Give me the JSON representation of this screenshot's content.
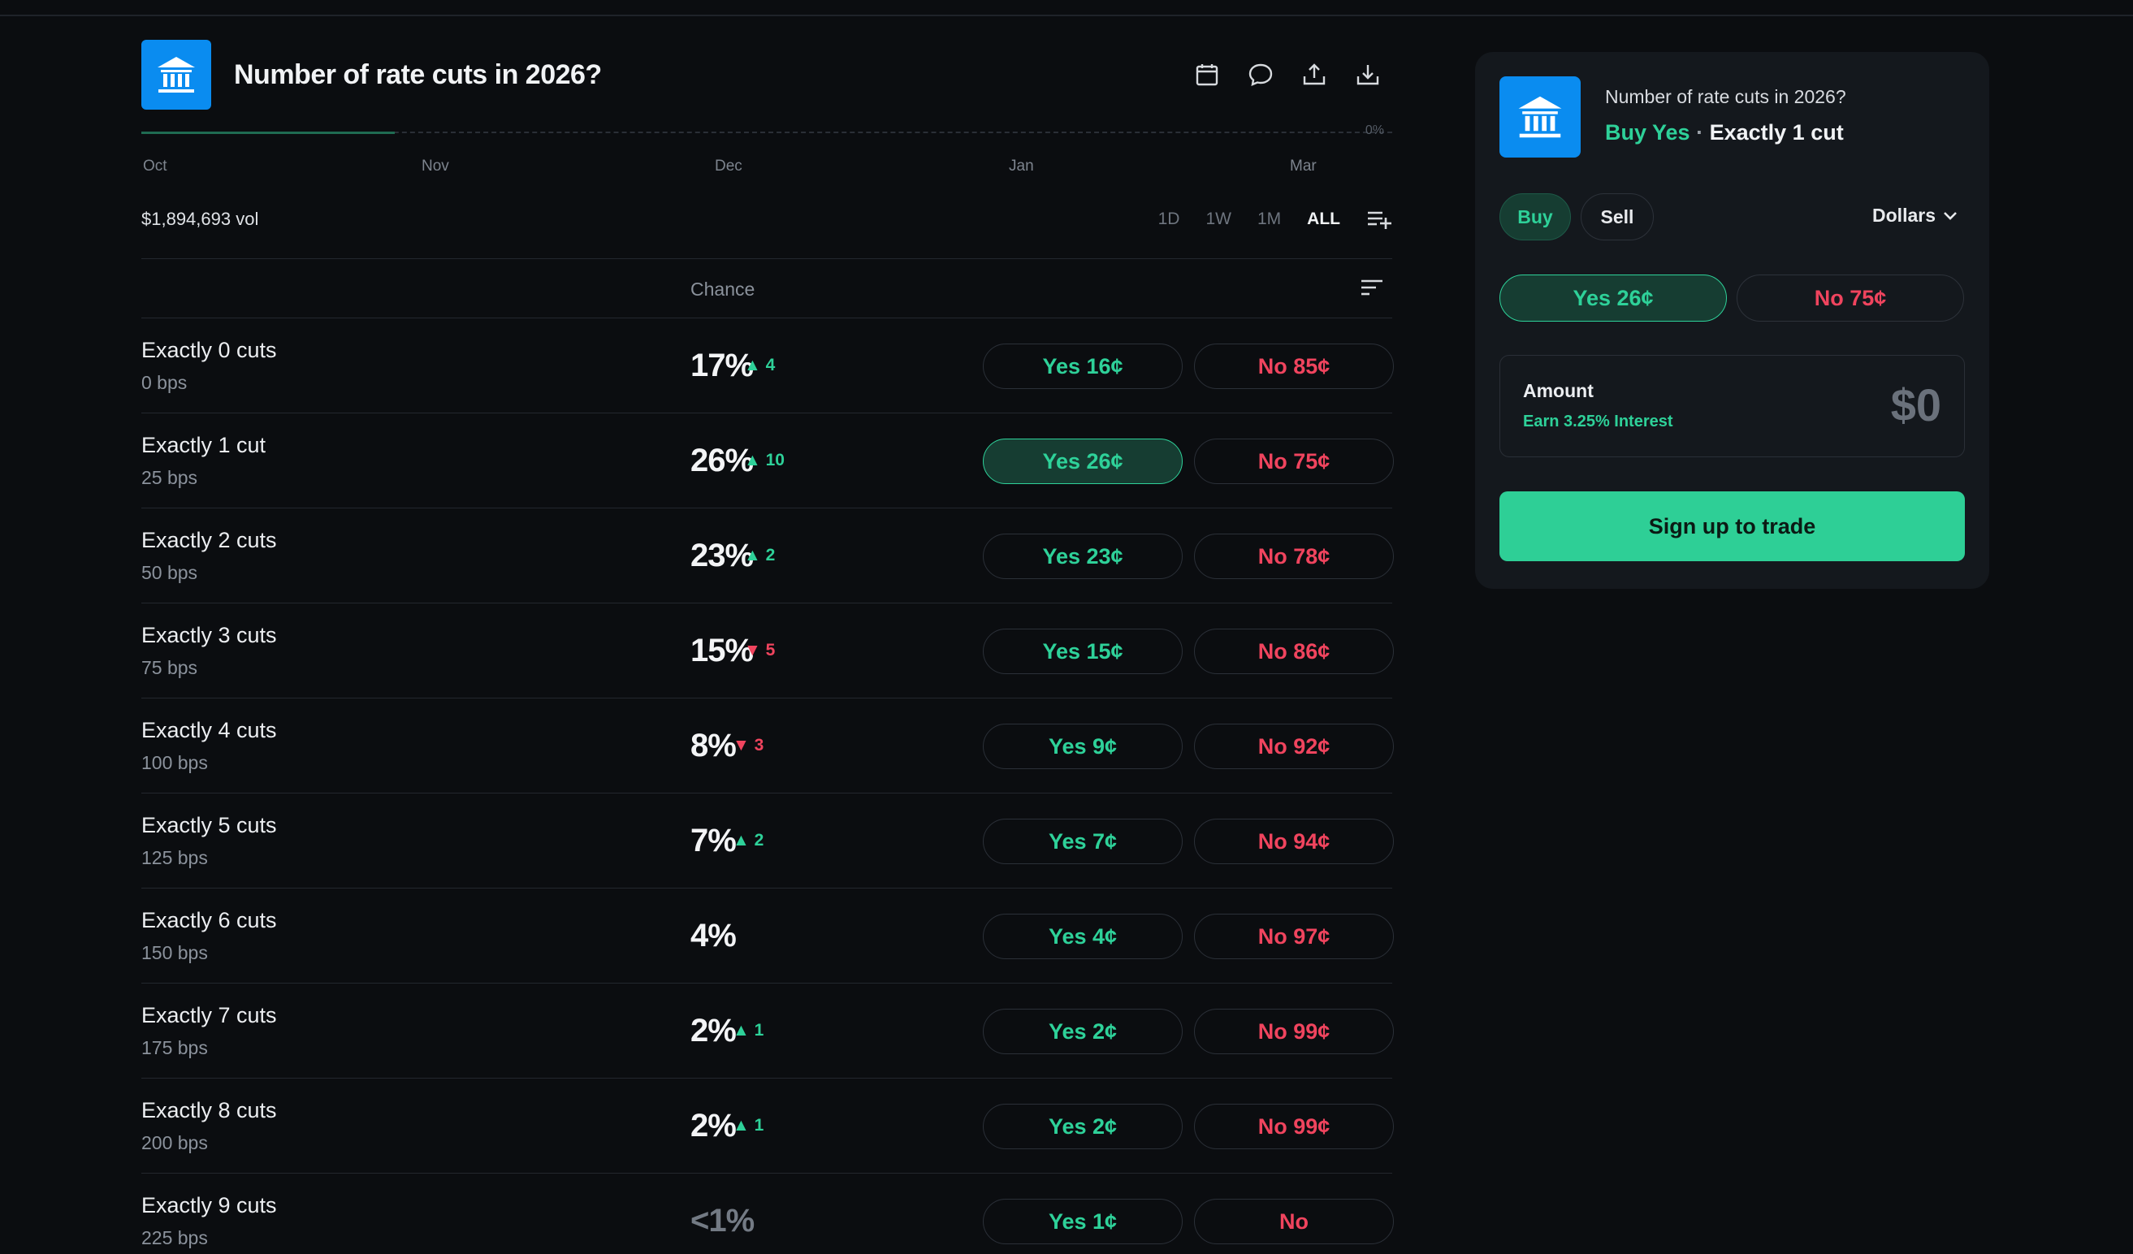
{
  "market": {
    "title": "Number of rate cuts in 2026?"
  },
  "chart": {
    "pct_label": "0%",
    "x_labels": [
      "Oct",
      "Nov",
      "Dec",
      "Jan",
      "Mar"
    ]
  },
  "volume": "$1,894,693 vol",
  "ranges": [
    "1D",
    "1W",
    "1M",
    "ALL"
  ],
  "active_range": "ALL",
  "table": {
    "chance_header": "Chance"
  },
  "rows": [
    {
      "name": "Exactly 0 cuts",
      "sub": "0 bps",
      "chance": "17%",
      "delta": "4",
      "dir": "up",
      "yes": "Yes 16¢",
      "no": "No 85¢"
    },
    {
      "name": "Exactly 1 cut",
      "sub": "25 bps",
      "chance": "26%",
      "delta": "10",
      "dir": "up",
      "yes": "Yes 26¢",
      "no": "No 75¢",
      "selected": true
    },
    {
      "name": "Exactly 2 cuts",
      "sub": "50 bps",
      "chance": "23%",
      "delta": "2",
      "dir": "up",
      "yes": "Yes 23¢",
      "no": "No 78¢"
    },
    {
      "name": "Exactly 3 cuts",
      "sub": "75 bps",
      "chance": "15%",
      "delta": "5",
      "dir": "down",
      "yes": "Yes 15¢",
      "no": "No 86¢"
    },
    {
      "name": "Exactly 4 cuts",
      "sub": "100 bps",
      "chance": "8%",
      "delta": "3",
      "dir": "down",
      "yes": "Yes 9¢",
      "no": "No 92¢"
    },
    {
      "name": "Exactly 5 cuts",
      "sub": "125 bps",
      "chance": "7%",
      "delta": "2",
      "dir": "up",
      "yes": "Yes 7¢",
      "no": "No 94¢"
    },
    {
      "name": "Exactly 6 cuts",
      "sub": "150 bps",
      "chance": "4%",
      "delta": "",
      "dir": "none",
      "yes": "Yes 4¢",
      "no": "No 97¢"
    },
    {
      "name": "Exactly 7 cuts",
      "sub": "175 bps",
      "chance": "2%",
      "delta": "1",
      "dir": "up",
      "yes": "Yes 2¢",
      "no": "No 99¢"
    },
    {
      "name": "Exactly 8 cuts",
      "sub": "200 bps",
      "chance": "2%",
      "delta": "1",
      "dir": "up",
      "yes": "Yes 2¢",
      "no": "No 99¢"
    },
    {
      "name": "Exactly 9 cuts",
      "sub": "225 bps",
      "chance": "<1%",
      "delta": "",
      "dir": "none",
      "yes": "Yes 1¢",
      "no": "No",
      "dim": true
    }
  ],
  "panel": {
    "title": "Number of rate cuts in 2026?",
    "action": "Buy Yes",
    "separator": "·",
    "outcome": "Exactly 1 cut",
    "buy_label": "Buy",
    "sell_label": "Sell",
    "currency": "Dollars",
    "yes_label": "Yes 26¢",
    "no_label": "No 75¢",
    "amount_label": "Amount",
    "interest_label": "Earn 3.25% Interest",
    "amount_value": "$0",
    "signup_label": "Sign up to trade"
  },
  "colors": {
    "accent_green": "#2ed199",
    "accent_red": "#f0445e",
    "brand_blue": "#0a8cf0"
  },
  "icons": {
    "logo": "bank-icon",
    "header": [
      "calendar-icon",
      "comment-icon",
      "share-icon",
      "download-icon"
    ],
    "list_add": "list-add-icon",
    "sort": "sort-icon",
    "currency_dropdown": "chevron-down-icon"
  }
}
